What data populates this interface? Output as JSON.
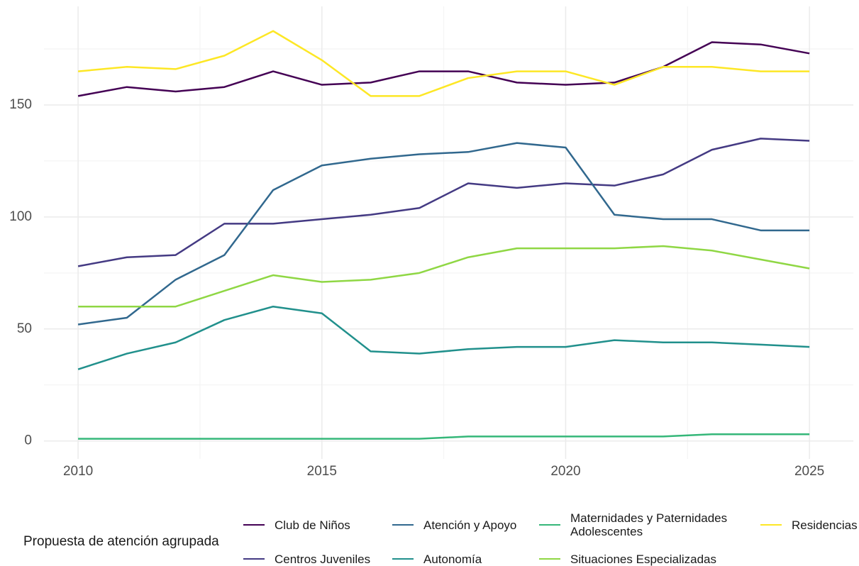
{
  "chart_data": {
    "type": "line",
    "x": [
      2010,
      2011,
      2012,
      2013,
      2014,
      2015,
      2016,
      2017,
      2018,
      2019,
      2020,
      2021,
      2022,
      2023,
      2024,
      2025
    ],
    "series": [
      {
        "name": "Club de Niños",
        "color": "#440154",
        "values": [
          154,
          158,
          156,
          158,
          165,
          159,
          160,
          165,
          165,
          160,
          159,
          160,
          167,
          178,
          177,
          173
        ]
      },
      {
        "name": "Centros Juveniles",
        "color": "#443A83",
        "values": [
          78,
          82,
          83,
          97,
          97,
          99,
          101,
          104,
          115,
          113,
          115,
          114,
          119,
          130,
          135,
          134
        ]
      },
      {
        "name": "Atención y Apoyo",
        "color": "#31688E",
        "values": [
          52,
          55,
          72,
          83,
          112,
          123,
          126,
          128,
          129,
          133,
          131,
          101,
          99,
          99,
          94,
          94
        ]
      },
      {
        "name": "Autonomía",
        "color": "#21908C",
        "values": [
          32,
          39,
          44,
          54,
          60,
          57,
          40,
          39,
          41,
          42,
          42,
          45,
          44,
          44,
          43,
          42
        ]
      },
      {
        "name": "Maternidades y Paternidades Adolescentes",
        "color": "#35B779",
        "values": [
          1,
          1,
          1,
          1,
          1,
          1,
          1,
          1,
          2,
          2,
          2,
          2,
          2,
          3,
          3,
          3
        ]
      },
      {
        "name": "Situaciones Especializadas",
        "color": "#8FD744",
        "values": [
          60,
          60,
          60,
          67,
          74,
          71,
          72,
          75,
          82,
          86,
          86,
          86,
          87,
          85,
          81,
          77
        ]
      },
      {
        "name": "Residencias",
        "color": "#FDE725",
        "values": [
          165,
          167,
          166,
          172,
          183,
          170,
          154,
          154,
          162,
          165,
          165,
          159,
          167,
          167,
          165,
          165
        ]
      }
    ],
    "xlim": [
      2009.3,
      2025.9
    ],
    "xticks": [
      2010,
      2015,
      2020,
      2025
    ],
    "ylim": [
      -8,
      194
    ],
    "yticks": [
      0,
      50,
      100,
      150
    ],
    "grid": true,
    "legend_title": "Propuesta de atención agrupada",
    "legend_position": "bottom"
  }
}
